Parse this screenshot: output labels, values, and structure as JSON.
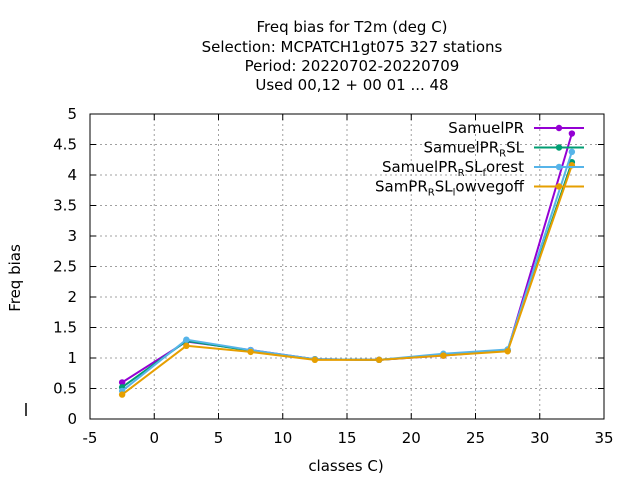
{
  "chart_data": {
    "type": "line",
    "title": {
      "line1": "Freq bias  for T2m (deg C)",
      "line2": "Selection: MCPATCH1gt075    327 stations",
      "line3": "Period: 20220702-20220709",
      "line4": "Used  00,12  + 00 01 ... 48"
    },
    "xlabel": "classes C)",
    "ylabel": "Freq bias",
    "xlim": [
      -5,
      35
    ],
    "ylim": [
      0,
      5
    ],
    "xticks": [
      "-5",
      "0",
      "5",
      "10",
      "15",
      "20",
      "25",
      "30",
      "35"
    ],
    "yticks": [
      "0",
      "0.5",
      "1",
      "1.5",
      "2",
      "2.5",
      "3",
      "3.5",
      "4",
      "4.5",
      "5"
    ],
    "grid": true,
    "legend_position": "top-right",
    "x": [
      -2.5,
      2.5,
      7.5,
      12.5,
      17.5,
      22.5,
      27.5,
      32.5
    ],
    "series": [
      {
        "legend": {
          "main": "SamuelPR",
          "sub": "",
          "tail": ""
        },
        "color": "#9400d3",
        "values": [
          0.6,
          1.27,
          1.13,
          0.98,
          0.97,
          1.04,
          1.12,
          4.68
        ]
      },
      {
        "legend": {
          "main": "SamuelPR",
          "sub": "R",
          "tail": "SL"
        },
        "color": "#009e73",
        "values": [
          0.52,
          1.28,
          1.12,
          0.98,
          0.97,
          1.05,
          1.12,
          4.21
        ]
      },
      {
        "legend": {
          "main": "SamuelPR",
          "sub": "R",
          "tail": "SL",
          "sub2": "f",
          "tail2": "orest"
        },
        "color": "#56b4e9",
        "values": [
          0.46,
          1.3,
          1.13,
          0.98,
          0.97,
          1.07,
          1.14,
          4.38
        ]
      },
      {
        "legend": {
          "main": "SamPR",
          "sub": "R",
          "tail": "SL",
          "sub2": "l",
          "tail2": "owvegoff"
        },
        "color": "#e69f00",
        "values": [
          0.4,
          1.2,
          1.1,
          0.97,
          0.97,
          1.04,
          1.11,
          4.16
        ]
      }
    ]
  }
}
